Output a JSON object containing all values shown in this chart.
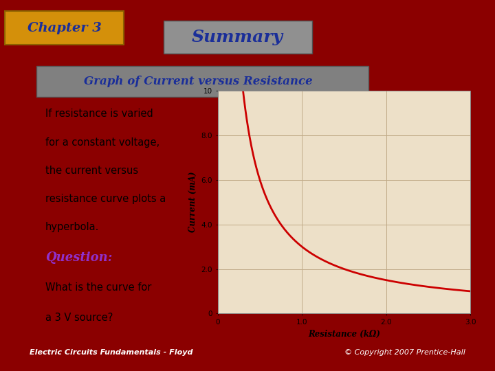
{
  "background_color": "#8B0000",
  "slide_bg": "#E8DCC8",
  "chapter_box_color": "#D4900A",
  "chapter_text": "Chapter 3",
  "chapter_text_color": "#1A2E99",
  "summary_box_color": "#909090",
  "summary_text": "Summary",
  "summary_text_color": "#1A2E99",
  "subtitle_box_color": "#808080",
  "subtitle_text": "Graph of Current versus Resistance",
  "subtitle_text_color": "#1A2E99",
  "body_text_lines": [
    "If resistance is varied",
    "for a constant voltage,",
    "the current versus",
    "resistance curve plots a",
    "hyperbola."
  ],
  "body_text_color": "#000000",
  "question_text": "Question:",
  "question_text_color": "#9030CC",
  "question_subtext_lines": [
    "What is the curve for",
    "a 3 V source?"
  ],
  "question_subtext_color": "#000000",
  "footer_left": "Electric Circuits Fundamentals - Floyd",
  "footer_right": "© Copyright 2007 Prentice-Hall",
  "footer_color": "#FFFFFF",
  "graph_facecolor": "#EDE0C8",
  "curve_color": "#CC0000",
  "curve_linewidth": 2.0,
  "xlim": [
    0,
    3.0
  ],
  "ylim": [
    0,
    10
  ],
  "xticks": [
    0,
    1.0,
    2.0,
    3.0
  ],
  "yticks": [
    0,
    2.0,
    4.0,
    6.0,
    8.0,
    10
  ],
  "xlabel": "Resistance (kΩ)",
  "ylabel": "Current (mA)",
  "grid_color": "#C0AA88",
  "voltage": 3.0
}
